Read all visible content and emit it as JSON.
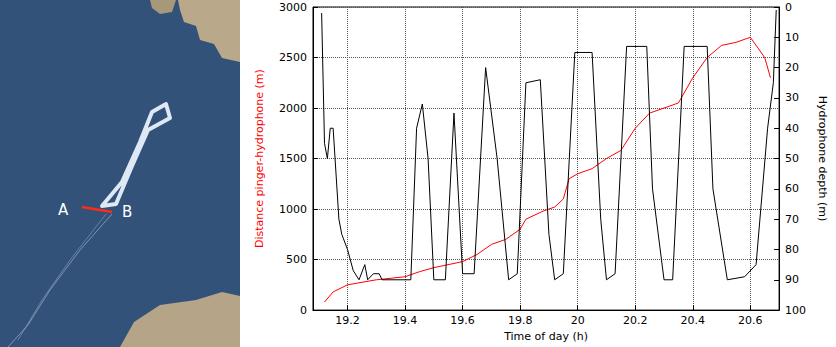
{
  "map": {
    "labels": [
      "A",
      "B"
    ]
  },
  "chart_data": {
    "type": "line",
    "xlabel": "Time of day (h)",
    "ylabel": "Distance pinger-hydrophone (m)",
    "y2label": "Hydrophone depth (m)",
    "xlim": [
      19.08,
      20.7
    ],
    "xticks": [
      19.2,
      19.4,
      19.6,
      19.8,
      20,
      20.2,
      20.4,
      20.6
    ],
    "ylim": [
      0,
      3000
    ],
    "yticks": [
      0,
      500,
      1000,
      1500,
      2000,
      2500,
      3000
    ],
    "y2lim": [
      100,
      0
    ],
    "y2ticks": [
      0,
      10,
      20,
      30,
      40,
      50,
      60,
      70,
      80,
      90,
      100
    ],
    "grid": true,
    "series": [
      {
        "color": "#ff0000",
        "axis": "y",
        "x": [
          19.12,
          19.15,
          19.2,
          19.3,
          19.4,
          19.45,
          19.5,
          19.6,
          19.65,
          19.7,
          19.75,
          19.8,
          19.82,
          19.88,
          19.92,
          19.95,
          19.97,
          20.0,
          20.05,
          20.1,
          20.15,
          20.2,
          20.25,
          20.3,
          20.35,
          20.4,
          20.45,
          20.5,
          20.55,
          20.6,
          20.65,
          20.67
        ],
        "values": [
          80,
          180,
          250,
          300,
          330,
          380,
          420,
          480,
          550,
          650,
          700,
          800,
          900,
          980,
          1020,
          1100,
          1300,
          1350,
          1400,
          1500,
          1580,
          1800,
          1950,
          2000,
          2050,
          2300,
          2500,
          2620,
          2650,
          2700,
          2500,
          2300
        ]
      },
      {
        "color": "#000000",
        "axis": "y2",
        "x": [
          19.11,
          19.12,
          19.13,
          19.14,
          19.15,
          19.17,
          19.18,
          19.2,
          19.22,
          19.24,
          19.26,
          19.27,
          19.29,
          19.31,
          19.32,
          19.42,
          19.44,
          19.46,
          19.48,
          19.5,
          19.54,
          19.57,
          19.6,
          19.64,
          19.68,
          19.72,
          19.76,
          19.79,
          19.82,
          19.87,
          19.9,
          19.92,
          19.95,
          19.99,
          20.05,
          20.08,
          20.1,
          20.13,
          20.17,
          20.24,
          20.26,
          20.3,
          20.33,
          20.37,
          20.45,
          20.47,
          20.52,
          20.58,
          20.62,
          20.66,
          20.68,
          20.69
        ],
        "values": [
          2,
          45,
          50,
          40,
          40,
          70,
          75,
          80,
          87,
          90,
          85,
          90,
          88,
          88,
          90,
          90,
          40,
          32,
          50,
          90,
          90,
          35,
          88,
          88,
          20,
          50,
          90,
          88,
          25,
          24,
          75,
          90,
          88,
          15,
          15,
          70,
          90,
          88,
          13,
          13,
          60,
          90,
          90,
          13,
          13,
          60,
          90,
          89,
          85,
          40,
          25,
          1
        ]
      }
    ]
  }
}
